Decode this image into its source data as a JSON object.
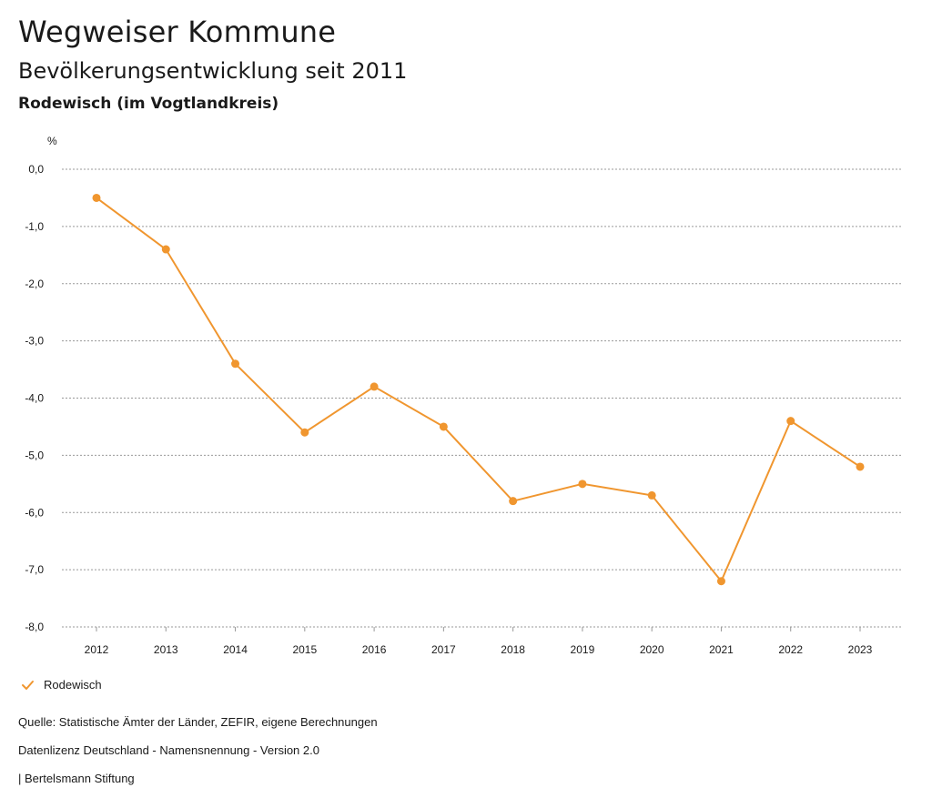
{
  "header": {
    "title": "Wegweiser Kommune",
    "subtitle": "Bevölkerungsentwicklung seit 2011",
    "region": "Rodewisch (im Vogtlandkreis)"
  },
  "chart_data": {
    "type": "line",
    "title": "Bevölkerungsentwicklung seit 2011",
    "xlabel": "",
    "ylabel": "%",
    "ylim": [
      -8,
      0
    ],
    "yticks": [
      "0,0",
      "-1,0",
      "-2,0",
      "-3,0",
      "-4,0",
      "-5,0",
      "-6,0",
      "-7,0",
      "-8,0"
    ],
    "ytick_values": [
      0,
      -1,
      -2,
      -3,
      -4,
      -5,
      -6,
      -7,
      -8
    ],
    "categories": [
      "2012",
      "2013",
      "2014",
      "2015",
      "2016",
      "2017",
      "2018",
      "2019",
      "2020",
      "2021",
      "2022",
      "2023"
    ],
    "series": [
      {
        "name": "Rodewisch",
        "color": "#f0962f",
        "values": [
          -0.5,
          -1.4,
          -3.4,
          -4.6,
          -3.8,
          -4.5,
          -5.8,
          -5.5,
          -5.7,
          -7.2,
          -4.4,
          -5.2
        ]
      }
    ],
    "grid": true,
    "legend": "bottom-left"
  },
  "footer": {
    "source": "Quelle: Statistische Ämter der Länder, ZEFIR, eigene Berechnungen",
    "license": "Datenlizenz Deutschland - Namensnennung - Version 2.0",
    "publisher": "| Bertelsmann Stiftung"
  }
}
